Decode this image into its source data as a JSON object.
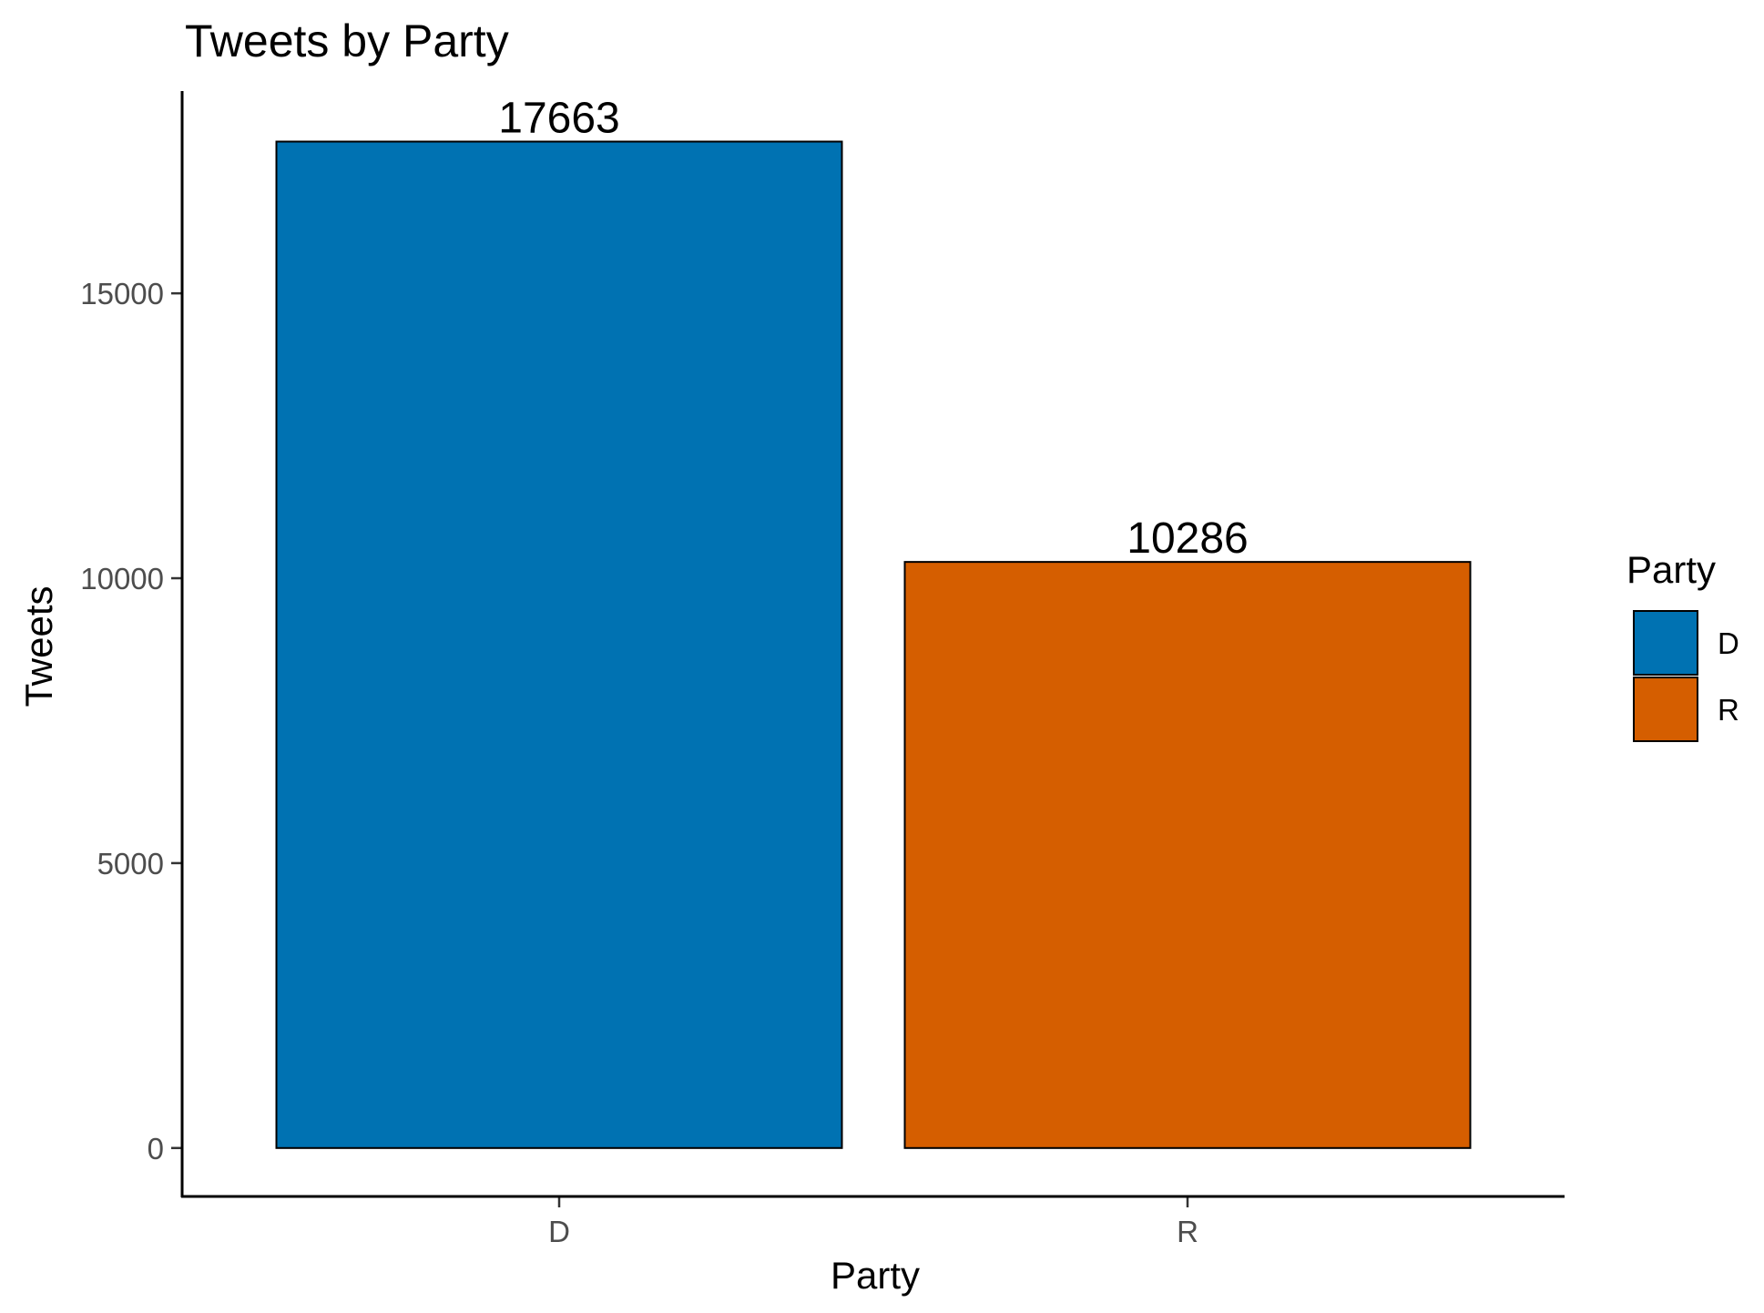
{
  "chart_data": {
    "type": "bar",
    "title": "Tweets by Party",
    "xlabel": "Party",
    "ylabel": "Tweets",
    "categories": [
      "D",
      "R"
    ],
    "values": [
      17663,
      10286
    ],
    "data_labels": [
      "17663",
      "10286"
    ],
    "colors": [
      "#0072B2",
      "#D55E00"
    ],
    "ylim": [
      -850,
      18550
    ],
    "yticks": [
      0,
      5000,
      10000,
      15000
    ],
    "ytick_labels": [
      "0",
      "5000",
      "10000",
      "15000"
    ],
    "grid": false,
    "legend": {
      "title": "Party",
      "position": "right",
      "entries": [
        "D",
        "R"
      ]
    }
  }
}
